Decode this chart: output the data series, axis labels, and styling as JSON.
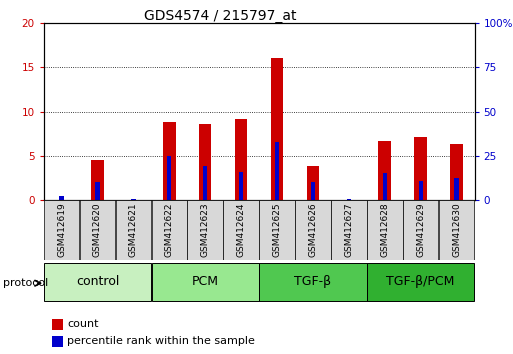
{
  "title": "GDS4574 / 215797_at",
  "samples": [
    "GSM412619",
    "GSM412620",
    "GSM412621",
    "GSM412622",
    "GSM412623",
    "GSM412624",
    "GSM412625",
    "GSM412626",
    "GSM412627",
    "GSM412628",
    "GSM412629",
    "GSM412630"
  ],
  "count_values": [
    0.05,
    4.5,
    0.05,
    8.8,
    8.6,
    9.1,
    16.1,
    3.8,
    0.05,
    6.7,
    7.1,
    6.3
  ],
  "percentile_raw": [
    2.5,
    10.0,
    0.5,
    25.0,
    19.0,
    16.0,
    32.5,
    10.0,
    0.5,
    15.5,
    11.0,
    12.5
  ],
  "groups": [
    {
      "label": "control",
      "start": 0,
      "end": 3,
      "color": "#c8f0c0"
    },
    {
      "label": "PCM",
      "start": 3,
      "end": 6,
      "color": "#98e890"
    },
    {
      "label": "TGF-β",
      "start": 6,
      "end": 9,
      "color": "#50c850"
    },
    {
      "label": "TGF-β/PCM",
      "start": 9,
      "end": 12,
      "color": "#30b030"
    }
  ],
  "protocol_label": "protocol",
  "left_ylim": [
    0,
    20
  ],
  "right_ylim": [
    0,
    100
  ],
  "left_yticks": [
    0,
    5,
    10,
    15,
    20
  ],
  "right_yticks": [
    0,
    25,
    50,
    75,
    100
  ],
  "left_yticklabels": [
    "0",
    "5",
    "10",
    "15",
    "20"
  ],
  "right_yticklabels": [
    "0",
    "25",
    "50",
    "75",
    "100%"
  ],
  "bar_color_red": "#cc0000",
  "bar_color_blue": "#0000cc",
  "red_bar_width": 0.35,
  "blue_bar_width": 0.12,
  "background_color": "#ffffff",
  "title_fontsize": 10,
  "tick_fontsize": 7.5,
  "group_fontsize": 9,
  "legend_fontsize": 8,
  "sample_label_fontsize": 6.5
}
